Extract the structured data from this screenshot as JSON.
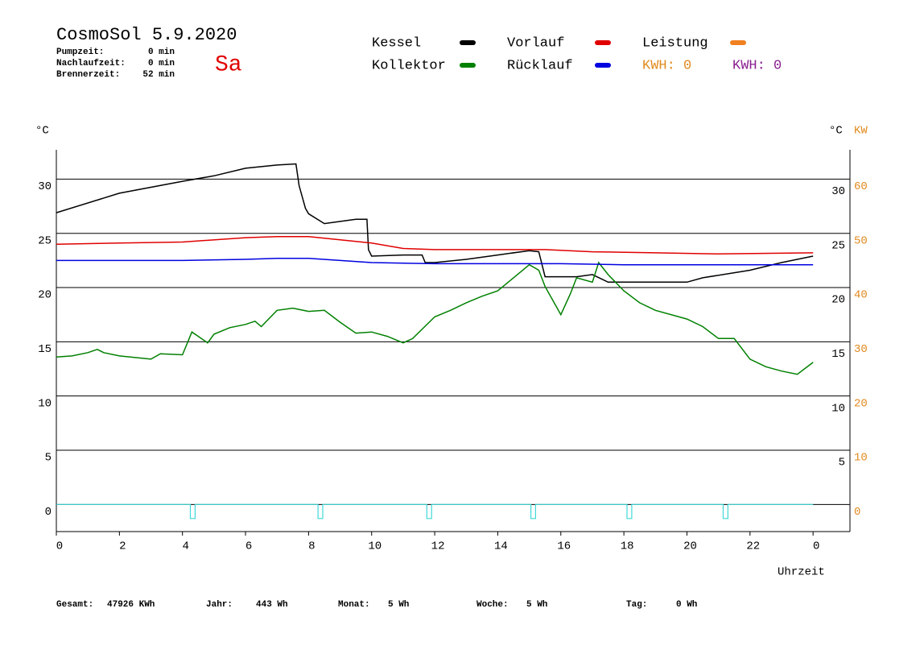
{
  "chart_data": {
    "type": "line",
    "title": "CosmoSol 5.9.2020",
    "day": "Sa",
    "stats": [
      {
        "label": "Pumpzeit:",
        "value": "0 min"
      },
      {
        "label": "Nachlaufzeit:",
        "value": "0 min"
      },
      {
        "label": "Brennerzeit:",
        "value": "52 min"
      }
    ],
    "kwh": [
      {
        "label": "KWH: 0",
        "color": "#e08a1e"
      },
      {
        "label": "KWH: 0",
        "color": "#8a2090"
      }
    ],
    "y_unit": "°C",
    "y2_unit": "KW",
    "x_label": "Uhrzeit",
    "xlim": [
      0,
      25.17
    ],
    "xticks": [
      0,
      2,
      4,
      6,
      8,
      10,
      12,
      14,
      16,
      18,
      20,
      22,
      {
        "value": 24,
        "label": "0"
      }
    ],
    "ylim": [
      -2.5,
      32.7
    ],
    "yticks": [
      0,
      5,
      10,
      15,
      20,
      25,
      30
    ],
    "yticks_right": [
      5,
      10,
      15,
      20,
      25,
      30
    ],
    "y2lim": [
      -5,
      65.4
    ],
    "y2ticks": [
      0,
      10,
      20,
      30,
      40,
      50,
      60
    ],
    "y2_color": "#e08a1e",
    "grid": true,
    "series": [
      {
        "name": "Kessel",
        "color": "#000000",
        "x": [
          0,
          2,
          4,
          5,
          6,
          7,
          7.6,
          7.7,
          7.9,
          8,
          8.5,
          9.5,
          9.85,
          9.9,
          10,
          11,
          11.6,
          11.7,
          12,
          13,
          14,
          15,
          15.3,
          15.5,
          16.5,
          17,
          17.5,
          18,
          20,
          20.5,
          22,
          23,
          24
        ],
        "values": [
          26.9,
          28.7,
          29.8,
          30.3,
          31.0,
          31.3,
          31.4,
          29.4,
          27.3,
          26.8,
          25.9,
          26.3,
          26.3,
          23.5,
          22.9,
          23.0,
          23.0,
          22.3,
          22.3,
          22.6,
          23.0,
          23.4,
          23.3,
          21.0,
          21.0,
          21.2,
          20.5,
          20.5,
          20.5,
          20.9,
          21.6,
          22.3,
          22.9
        ]
      },
      {
        "name": "Kollektor",
        "color": "#008000",
        "x": [
          0,
          0.5,
          1,
          1.3,
          1.5,
          2,
          3,
          3.3,
          4,
          4.3,
          4.5,
          4.8,
          5,
          5.5,
          6,
          6.3,
          6.5,
          7,
          7.5,
          8,
          8.5,
          9,
          9.5,
          10,
          10.5,
          11,
          11.3,
          12,
          12.5,
          13,
          13.5,
          14,
          14.5,
          15,
          15.3,
          15.5,
          16,
          16.3,
          16.5,
          17,
          17.2,
          17.5,
          18,
          18.5,
          19,
          20,
          20.5,
          21,
          21.5,
          22,
          22.5,
          23,
          23.5,
          24
        ],
        "values": [
          13.6,
          13.7,
          14.0,
          14.3,
          14.0,
          13.7,
          13.4,
          13.9,
          13.8,
          15.9,
          15.5,
          14.9,
          15.7,
          16.3,
          16.6,
          16.9,
          16.4,
          17.9,
          18.1,
          17.8,
          17.9,
          16.8,
          15.8,
          15.9,
          15.5,
          14.9,
          15.3,
          17.3,
          17.9,
          18.6,
          19.2,
          19.7,
          20.9,
          22.1,
          21.6,
          20.1,
          17.5,
          19.4,
          20.9,
          20.5,
          22.3,
          21.2,
          19.7,
          18.6,
          17.9,
          17.1,
          16.4,
          15.3,
          15.3,
          13.4,
          12.7,
          12.3,
          12.0,
          13.1
        ]
      },
      {
        "name": "Vorlauf",
        "color": "#e00000",
        "x": [
          0,
          2,
          4,
          6,
          7,
          8,
          9,
          10,
          11,
          12,
          14,
          15.5,
          17,
          19,
          21,
          24
        ],
        "values": [
          24.0,
          24.1,
          24.2,
          24.6,
          24.7,
          24.7,
          24.4,
          24.1,
          23.6,
          23.5,
          23.5,
          23.5,
          23.3,
          23.2,
          23.1,
          23.2
        ]
      },
      {
        "name": "Rücklauf",
        "color": "#0000e0",
        "x": [
          0,
          4,
          6,
          7,
          8,
          9,
          10,
          12,
          14,
          16,
          18,
          24
        ],
        "values": [
          22.5,
          22.5,
          22.6,
          22.7,
          22.7,
          22.5,
          22.3,
          22.2,
          22.2,
          22.2,
          22.1,
          22.1
        ]
      },
      {
        "name": "Leistung",
        "color": "#f08020",
        "x": [],
        "values": []
      },
      {
        "color": "#40d8d8",
        "x": [
          0,
          4.25,
          4.25,
          4.4,
          4.4,
          8.3,
          8.3,
          8.45,
          8.45,
          11.75,
          11.75,
          11.9,
          11.9,
          15.05,
          15.05,
          15.2,
          15.2,
          18.1,
          18.1,
          18.25,
          18.25,
          21.15,
          21.15,
          21.3,
          21.3,
          24
        ],
        "values": [
          0,
          0,
          -1.3,
          -1.3,
          0,
          0,
          -1.3,
          -1.3,
          0,
          0,
          -1.3,
          -1.3,
          0,
          0,
          -1.3,
          -1.3,
          0,
          0,
          -1.3,
          -1.3,
          0,
          0,
          -1.3,
          -1.3,
          0,
          0
        ]
      }
    ],
    "totals": [
      {
        "label": "Gesamt:",
        "value": "47926 KWh"
      },
      {
        "label": "Jahr:",
        "value": "443 Wh"
      },
      {
        "label": "Monat:",
        "value": "5 Wh"
      },
      {
        "label": "Woche:",
        "value": "5 Wh"
      },
      {
        "label": "Tag:",
        "value": "0 Wh"
      }
    ]
  }
}
